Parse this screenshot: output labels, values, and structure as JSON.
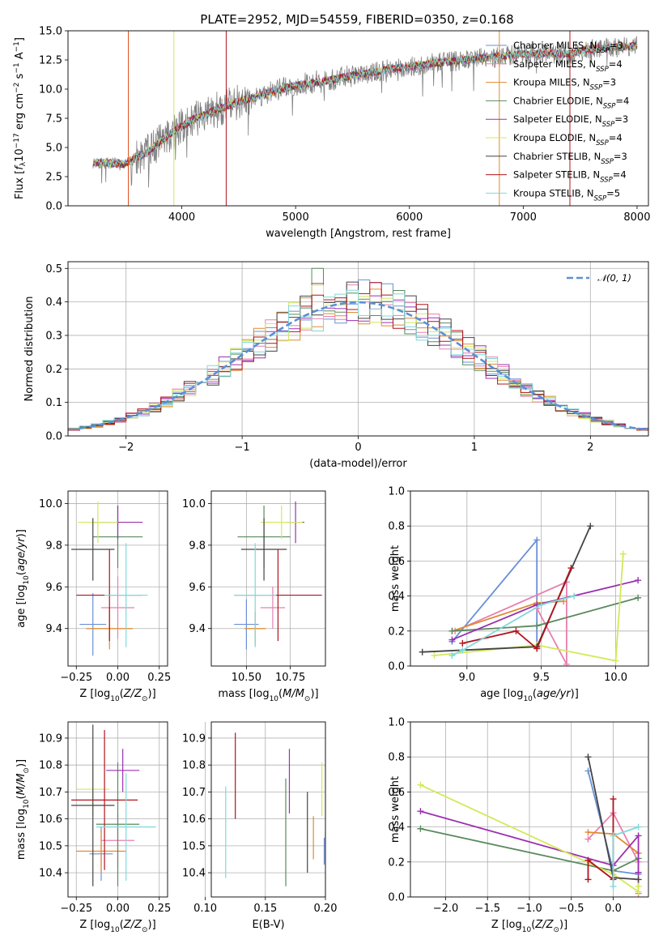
{
  "title": "PLATE=2952, MJD=54559, FIBERID=0350, z=0.168",
  "colors": {
    "Chabrier MILES": "#6a8fd8",
    "Salpeter MILES": "#e87fb0",
    "Kroupa MILES": "#e08a30",
    "Chabrier ELODIE": "#5a8a5e",
    "Salpeter ELODIE": "#9b30b0",
    "Kroupa ELODIE": "#d4e85a",
    "Chabrier STELIB": "#444444",
    "Salpeter STELIB": "#b0141c",
    "Kroupa STELIB": "#80d8d8",
    "data": "#808080",
    "normal": "#5b8fd6"
  },
  "chart_data": [
    {
      "type": "line",
      "id": "spectrum",
      "title": "PLATE=2952, MJD=54559, FIBERID=0350, z=0.168",
      "xlabel": "wavelength [Angstrom, rest frame]",
      "ylabel": "Flux [f_λ 10^-17 erg cm^-2 s^-1 A^-1]",
      "xlim": [
        3000,
        8100
      ],
      "ylim": [
        0,
        15
      ],
      "xticks": [
        "4000",
        "5000",
        "6000",
        "7000",
        "8000"
      ],
      "yticks": [
        "0.0",
        "2.5",
        "5.0",
        "7.5",
        "10.0",
        "12.5",
        "15.0"
      ],
      "continuum": [
        [
          3220,
          3.7
        ],
        [
          3500,
          3.6
        ],
        [
          3700,
          4.6
        ],
        [
          3900,
          6.2
        ],
        [
          4100,
          7.4
        ],
        [
          4300,
          8.2
        ],
        [
          4500,
          8.9
        ],
        [
          4800,
          9.8
        ],
        [
          5000,
          10.3
        ],
        [
          5300,
          10.8
        ],
        [
          5600,
          11.3
        ],
        [
          5900,
          11.8
        ],
        [
          6200,
          12.2
        ],
        [
          6500,
          12.5
        ],
        [
          6800,
          12.8
        ],
        [
          7000,
          13.0
        ],
        [
          7200,
          13.1
        ],
        [
          7400,
          13.0
        ],
        [
          7550,
          13.4
        ],
        [
          7700,
          13.5
        ],
        [
          8000,
          13.7
        ]
      ],
      "legend": [
        {
          "base": "Chabrier MILES",
          "sub": "SSP",
          "n": "=3"
        },
        {
          "base": "Salpeter MILES",
          "sub": "SSP",
          "n": "=4"
        },
        {
          "base": "Kroupa MILES",
          "sub": "SSP",
          "n": "=3"
        },
        {
          "base": "Chabrier ELODIE",
          "sub": "SSP",
          "n": "=4"
        },
        {
          "base": "Salpeter ELODIE",
          "sub": "SSP",
          "n": "=3"
        },
        {
          "base": "Kroupa ELODIE",
          "sub": "SSP",
          "n": "=4"
        },
        {
          "base": "Chabrier STELIB",
          "sub": "SSP",
          "n": "=3"
        },
        {
          "base": "Salpeter STELIB",
          "sub": "SSP",
          "n": "=4"
        },
        {
          "base": "Kroupa STELIB",
          "sub": "SSP",
          "n": "=5"
        }
      ]
    },
    {
      "type": "line",
      "id": "residuals",
      "xlabel": "(data-model)/error",
      "ylabel": "Normed distribution",
      "xlim": [
        -2.5,
        2.5
      ],
      "ylim": [
        0,
        0.52
      ],
      "xticks": [
        "−2",
        "−1",
        "0",
        "1",
        "2"
      ],
      "yticks": [
        "0.0",
        "0.1",
        "0.2",
        "0.3",
        "0.4",
        "0.5"
      ],
      "legend": "𝒩(0, 1)",
      "peak_values": {
        "Chabrier ELODIE": 0.5,
        "Salpeter ELODIE": 0.455,
        "Kroupa ELODIE": 0.45,
        "Salpeter STELIB": 0.42
      }
    },
    {
      "type": "scatter",
      "id": "age-vs-Z",
      "xlabel": "Z [log10(Z/Z⊙)]",
      "ylabel": "age  [log10(age/yr)]",
      "xlim": [
        -0.3,
        0.3
      ],
      "ylim": [
        9.22,
        10.06
      ],
      "xticks": [
        "−0.25",
        "0.00",
        "0.25"
      ],
      "yticks": [
        "9.4",
        "9.6",
        "9.8",
        "10.0"
      ],
      "points": [
        {
          "s": "Chabrier MILES",
          "x": -0.15,
          "xerr": 0.08,
          "y": 9.42,
          "yerr": 0.15
        },
        {
          "s": "Salpeter MILES",
          "x": 0.0,
          "xerr": 0.1,
          "y": 9.5,
          "yerr": 0.15
        },
        {
          "s": "Kroupa MILES",
          "x": -0.05,
          "xerr": 0.14,
          "y": 9.4,
          "yerr": 0.1
        },
        {
          "s": "Chabrier ELODIE",
          "x": 0.0,
          "xerr": 0.15,
          "y": 9.84,
          "yerr": 0.15
        },
        {
          "s": "Salpeter ELODIE",
          "x": 0.0,
          "xerr": 0.15,
          "y": 9.91,
          "yerr": 0.08
        },
        {
          "s": "Kroupa ELODIE",
          "x": -0.12,
          "xerr": 0.12,
          "y": 9.91,
          "yerr": 0.1
        },
        {
          "s": "Chabrier STELIB",
          "x": -0.15,
          "xerr": 0.13,
          "y": 9.78,
          "yerr": 0.15
        },
        {
          "s": "Salpeter STELIB",
          "x": -0.05,
          "xerr": 0.2,
          "y": 9.56,
          "yerr": 0.22
        },
        {
          "s": "Kroupa STELIB",
          "x": 0.05,
          "xerr": 0.13,
          "y": 9.56,
          "yerr": 0.25
        }
      ]
    },
    {
      "type": "scatter",
      "id": "age-vs-mass",
      "xlabel": "mass [log10(M/M⊙)]",
      "ylabel": "",
      "xlim": [
        10.3,
        10.95
      ],
      "ylim": [
        9.22,
        10.06
      ],
      "xticks": [
        "10.50",
        "10.75"
      ],
      "yticks": [
        "9.4",
        "9.6",
        "9.8",
        "10.0"
      ],
      "points": [
        {
          "s": "Chabrier MILES",
          "x": 10.5,
          "xerr": 0.07,
          "y": 9.42,
          "yerr": 0.12
        },
        {
          "s": "Salpeter MILES",
          "x": 10.65,
          "xerr": 0.07,
          "y": 9.5,
          "yerr": 0.1
        },
        {
          "s": "Kroupa MILES",
          "x": 10.55,
          "xerr": 0.06,
          "y": 9.4,
          "yerr": 0.08
        },
        {
          "s": "Chabrier ELODIE",
          "x": 10.6,
          "xerr": 0.15,
          "y": 9.84,
          "yerr": 0.15
        },
        {
          "s": "Salpeter ELODIE",
          "x": 10.78,
          "xerr": 0.05,
          "y": 9.91,
          "yerr": 0.1
        },
        {
          "s": "Kroupa ELODIE",
          "x": 10.7,
          "xerr": 0.12,
          "y": 9.91,
          "yerr": 0.08
        },
        {
          "s": "Chabrier STELIB",
          "x": 10.6,
          "xerr": 0.13,
          "y": 9.78,
          "yerr": 0.15
        },
        {
          "s": "Salpeter STELIB",
          "x": 10.68,
          "xerr": 0.25,
          "y": 9.56,
          "yerr": 0.22
        },
        {
          "s": "Kroupa STELIB",
          "x": 10.55,
          "xerr": 0.12,
          "y": 9.56,
          "yerr": 0.25
        }
      ]
    },
    {
      "type": "line",
      "id": "weight-vs-age",
      "xlabel": "age  [log10(age/yr)]",
      "ylabel": "mass weight",
      "xlim": [
        8.62,
        10.22
      ],
      "ylim": [
        0,
        1
      ],
      "xticks": [
        "9.0",
        "9.5",
        "10.0"
      ],
      "yticks": [
        "0.0",
        "0.2",
        "0.4",
        "0.6",
        "0.8",
        "1.0"
      ],
      "series": [
        {
          "name": "Chabrier MILES",
          "points": [
            [
              8.9,
              0.14
            ],
            [
              9.47,
              0.72
            ],
            [
              9.47,
              0.1
            ]
          ]
        },
        {
          "name": "Salpeter MILES",
          "points": [
            [
              8.92,
              0.2
            ],
            [
              9.67,
              0.48
            ],
            [
              9.67,
              0.01
            ],
            [
              9.47,
              0.33
            ]
          ]
        },
        {
          "name": "Kroupa MILES",
          "points": [
            [
              8.9,
              0.2
            ],
            [
              9.47,
              0.36
            ],
            [
              9.65,
              0.37
            ]
          ]
        },
        {
          "name": "Chabrier ELODIE",
          "points": [
            [
              8.9,
              0.2
            ],
            [
              9.47,
              0.23
            ],
            [
              10.15,
              0.39
            ]
          ]
        },
        {
          "name": "Salpeter ELODIE",
          "points": [
            [
              8.9,
              0.15
            ],
            [
              9.47,
              0.35
            ],
            [
              10.15,
              0.49
            ]
          ]
        },
        {
          "name": "Kroupa ELODIE",
          "points": [
            [
              8.78,
              0.06
            ],
            [
              9.47,
              0.12
            ],
            [
              10.0,
              0.03
            ],
            [
              10.05,
              0.64
            ]
          ]
        },
        {
          "name": "Chabrier STELIB",
          "points": [
            [
              8.7,
              0.08
            ],
            [
              9.47,
              0.11
            ],
            [
              9.83,
              0.8
            ]
          ]
        },
        {
          "name": "Salpeter STELIB",
          "points": [
            [
              8.97,
              0.13
            ],
            [
              9.33,
              0.2
            ],
            [
              9.47,
              0.1
            ],
            [
              9.7,
              0.56
            ]
          ]
        },
        {
          "name": "Kroupa STELIB",
          "points": [
            [
              8.9,
              0.06
            ],
            [
              8.97,
              0.09
            ],
            [
              9.5,
              0.35
            ],
            [
              9.72,
              0.4
            ]
          ]
        }
      ]
    },
    {
      "type": "scatter",
      "id": "mass-vs-Z",
      "xlabel": "Z [log10(Z/Z⊙)]",
      "ylabel": "mass [log10(M/M⊙)]",
      "xlim": [
        -0.3,
        0.3
      ],
      "ylim": [
        10.31,
        10.96
      ],
      "xticks": [
        "−0.25",
        "0.00",
        "0.25"
      ],
      "yticks": [
        "10.4",
        "10.5",
        "10.6",
        "10.7",
        "10.8",
        "10.9"
      ],
      "points": [
        {
          "s": "Chabrier MILES",
          "x": -0.1,
          "xerr": 0.07,
          "y": 10.47,
          "yerr": 0.1
        },
        {
          "s": "Salpeter MILES",
          "x": 0.0,
          "xerr": 0.1,
          "y": 10.52,
          "yerr": 0.1
        },
        {
          "s": "Kroupa MILES",
          "x": -0.1,
          "xerr": 0.15,
          "y": 10.48,
          "yerr": 0.08
        },
        {
          "s": "Chabrier ELODIE",
          "x": 0.0,
          "xerr": 0.13,
          "y": 10.58,
          "yerr": 0.23
        },
        {
          "s": "Salpeter ELODIE",
          "x": 0.03,
          "xerr": 0.1,
          "y": 10.78,
          "yerr": 0.08
        },
        {
          "s": "Kroupa ELODIE",
          "x": -0.15,
          "xerr": 0.1,
          "y": 10.71,
          "yerr": 0.1
        },
        {
          "s": "Chabrier STELIB",
          "x": -0.15,
          "xerr": 0.13,
          "y": 10.65,
          "yerr": 0.3
        },
        {
          "s": "Salpeter STELIB",
          "x": -0.08,
          "xerr": 0.2,
          "y": 10.67,
          "yerr": 0.26
        },
        {
          "s": "Kroupa STELIB",
          "x": 0.05,
          "xerr": 0.18,
          "y": 10.57,
          "yerr": 0.2
        }
      ]
    },
    {
      "type": "scatter",
      "id": "mass-vs-EBV",
      "xlabel": "E(B-V)",
      "ylabel": "",
      "xlim": [
        0.105,
        0.2
      ],
      "ylim": [
        10.31,
        10.96
      ],
      "xticks": [
        "0.10",
        "0.15",
        "0.20"
      ],
      "yticks": [
        "10.4",
        "10.5",
        "10.6",
        "10.7",
        "10.8",
        "10.9"
      ],
      "points": [
        {
          "s": "Chabrier MILES",
          "x": 0.199,
          "y": 10.48,
          "yerr": 0.05
        },
        {
          "s": "Salpeter MILES",
          "x": 0.2,
          "y": 10.5,
          "yerr": 0.05
        },
        {
          "s": "Kroupa MILES",
          "x": 0.19,
          "y": 10.53,
          "yerr": 0.08
        },
        {
          "s": "Chabrier ELODIE",
          "x": 0.167,
          "y": 10.55,
          "yerr": 0.2
        },
        {
          "s": "Salpeter ELODIE",
          "x": 0.17,
          "y": 10.74,
          "yerr": 0.12
        },
        {
          "s": "Kroupa ELODIE",
          "x": 0.197,
          "y": 10.71,
          "yerr": 0.1
        },
        {
          "s": "Chabrier STELIB",
          "x": 0.185,
          "y": 10.55,
          "yerr": 0.15
        },
        {
          "s": "Salpeter STELIB",
          "x": 0.125,
          "y": 10.76,
          "yerr": 0.16
        },
        {
          "s": "Kroupa STELIB",
          "x": 0.117,
          "y": 10.55,
          "yerr": 0.17
        }
      ]
    },
    {
      "type": "line",
      "id": "weight-vs-Z",
      "xlabel": "Z [log10(Z/Z⊙)]",
      "ylabel": "mass weight",
      "xlim": [
        -2.42,
        0.42
      ],
      "ylim": [
        0,
        1
      ],
      "xticks": [
        "−2.0",
        "−1.5",
        "−1.0",
        "−0.5",
        "0.0"
      ],
      "yticks": [
        "0.0",
        "0.2",
        "0.4",
        "0.6",
        "0.8",
        "1.0"
      ],
      "series": [
        {
          "name": "Chabrier MILES",
          "points": [
            [
              -0.3,
              0.72
            ],
            [
              0,
              0.15
            ],
            [
              0.3,
              0.13
            ]
          ]
        },
        {
          "name": "Salpeter MILES",
          "points": [
            [
              -0.3,
              0.33
            ],
            [
              0,
              0.48
            ],
            [
              0.3,
              0.2
            ],
            [
              0.3,
              0.02
            ]
          ]
        },
        {
          "name": "Kroupa MILES",
          "points": [
            [
              -0.3,
              0.37
            ],
            [
              0,
              0.36
            ],
            [
              0.3,
              0.25
            ]
          ]
        },
        {
          "name": "Chabrier ELODIE",
          "points": [
            [
              -2.3,
              0.39
            ],
            [
              0,
              0.15
            ],
            [
              0.3,
              0.22
            ]
          ]
        },
        {
          "name": "Salpeter ELODIE",
          "points": [
            [
              -2.3,
              0.49
            ],
            [
              0,
              0.18
            ],
            [
              0.3,
              0.35
            ],
            [
              0.3,
              0.14
            ]
          ]
        },
        {
          "name": "Kroupa ELODIE",
          "points": [
            [
              -2.3,
              0.64
            ],
            [
              0,
              0.13
            ],
            [
              0.3,
              0.03
            ],
            [
              0.3,
              0.06
            ]
          ]
        },
        {
          "name": "Chabrier STELIB",
          "points": [
            [
              -0.3,
              0.8
            ],
            [
              0,
              0.11
            ],
            [
              0.3,
              0.1
            ]
          ]
        },
        {
          "name": "Salpeter STELIB",
          "points": [
            [
              -0.3,
              0.1
            ],
            [
              -0.3,
              0.21
            ],
            [
              0,
              0.1
            ],
            [
              0,
              0.56
            ]
          ]
        },
        {
          "name": "Kroupa STELIB",
          "points": [
            [
              0,
              0.06
            ],
            [
              0,
              0.35
            ],
            [
              0.3,
              0.4
            ]
          ]
        }
      ]
    }
  ]
}
